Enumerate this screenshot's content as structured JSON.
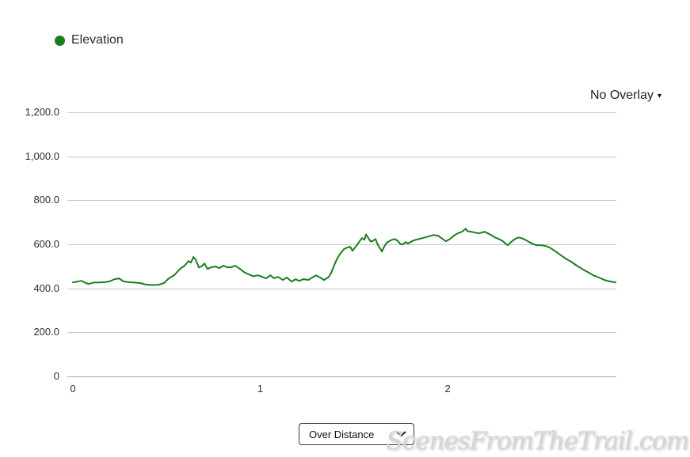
{
  "legend": {
    "label": "Elevation",
    "dot_color": "#1d7d1d"
  },
  "overlay_menu": {
    "label": "No Overlay",
    "caret": "▾"
  },
  "chart_data": {
    "type": "line",
    "title": "",
    "xlabel": "",
    "ylabel": "",
    "xlim": [
      0,
      2.9
    ],
    "ylim": [
      0,
      1200
    ],
    "grid": "horizontal-only",
    "legend_position": "top-left",
    "x_ticks": [
      0,
      1,
      2
    ],
    "y_ticks": [
      {
        "label": "1,200.0",
        "value": 1200
      },
      {
        "label": "1,000.0",
        "value": 1000
      },
      {
        "label": "800.0",
        "value": 800
      },
      {
        "label": "600.0",
        "value": 600
      },
      {
        "label": "400.0",
        "value": 400
      },
      {
        "label": "200.0",
        "value": 200
      },
      {
        "label": "0",
        "value": 0
      }
    ],
    "series": [
      {
        "name": "Elevation",
        "color": "#1d7d1d",
        "units_x": "miles",
        "units_y": "feet",
        "points": [
          [
            0.0,
            427
          ],
          [
            0.021,
            430
          ],
          [
            0.047,
            434
          ],
          [
            0.068,
            424
          ],
          [
            0.085,
            420
          ],
          [
            0.11,
            426
          ],
          [
            0.14,
            427
          ],
          [
            0.169,
            428
          ],
          [
            0.194,
            431
          ],
          [
            0.224,
            442
          ],
          [
            0.245,
            445
          ],
          [
            0.271,
            431
          ],
          [
            0.3,
            428
          ],
          [
            0.33,
            426
          ],
          [
            0.359,
            424
          ],
          [
            0.389,
            417
          ],
          [
            0.423,
            415
          ],
          [
            0.457,
            416
          ],
          [
            0.486,
            424
          ],
          [
            0.512,
            445
          ],
          [
            0.541,
            460
          ],
          [
            0.571,
            488
          ],
          [
            0.596,
            503
          ],
          [
            0.617,
            524
          ],
          [
            0.63,
            517
          ],
          [
            0.643,
            542
          ],
          [
            0.655,
            531
          ],
          [
            0.672,
            495
          ],
          [
            0.689,
            501
          ],
          [
            0.702,
            513
          ],
          [
            0.719,
            488
          ],
          [
            0.74,
            496
          ],
          [
            0.761,
            499
          ],
          [
            0.782,
            492
          ],
          [
            0.803,
            503
          ],
          [
            0.824,
            495
          ],
          [
            0.846,
            496
          ],
          [
            0.867,
            503
          ],
          [
            0.888,
            490
          ],
          [
            0.913,
            474
          ],
          [
            0.939,
            463
          ],
          [
            0.964,
            455
          ],
          [
            0.989,
            459
          ],
          [
            1.01,
            452
          ],
          [
            1.032,
            445
          ],
          [
            1.053,
            459
          ],
          [
            1.074,
            446
          ],
          [
            1.095,
            452
          ],
          [
            1.12,
            438
          ],
          [
            1.141,
            449
          ],
          [
            1.167,
            431
          ],
          [
            1.188,
            441
          ],
          [
            1.209,
            434
          ],
          [
            1.23,
            442
          ],
          [
            1.256,
            438
          ],
          [
            1.277,
            449
          ],
          [
            1.298,
            459
          ],
          [
            1.319,
            449
          ],
          [
            1.34,
            438
          ],
          [
            1.353,
            445
          ],
          [
            1.366,
            452
          ],
          [
            1.378,
            470
          ],
          [
            1.395,
            506
          ],
          [
            1.412,
            538
          ],
          [
            1.429,
            560
          ],
          [
            1.446,
            578
          ],
          [
            1.463,
            585
          ],
          [
            1.48,
            589
          ],
          [
            1.492,
            571
          ],
          [
            1.505,
            585
          ],
          [
            1.518,
            599
          ],
          [
            1.53,
            614
          ],
          [
            1.543,
            628
          ],
          [
            1.556,
            621
          ],
          [
            1.564,
            645
          ],
          [
            1.577,
            628
          ],
          [
            1.59,
            612
          ],
          [
            1.602,
            617
          ],
          [
            1.615,
            624
          ],
          [
            1.628,
            596
          ],
          [
            1.64,
            581
          ],
          [
            1.649,
            567
          ],
          [
            1.661,
            589
          ],
          [
            1.674,
            607
          ],
          [
            1.687,
            614
          ],
          [
            1.704,
            621
          ],
          [
            1.716,
            624
          ],
          [
            1.733,
            617
          ],
          [
            1.746,
            603
          ],
          [
            1.759,
            599
          ],
          [
            1.776,
            610
          ],
          [
            1.788,
            603
          ],
          [
            1.809,
            614
          ],
          [
            1.831,
            621
          ],
          [
            1.852,
            625
          ],
          [
            1.873,
            630
          ],
          [
            1.894,
            635
          ],
          [
            1.923,
            642
          ],
          [
            1.949,
            639
          ],
          [
            1.978,
            621
          ],
          [
            1.991,
            614
          ],
          [
            2.012,
            624
          ],
          [
            2.033,
            639
          ],
          [
            2.054,
            650
          ],
          [
            2.076,
            657
          ],
          [
            2.097,
            671
          ],
          [
            2.105,
            660
          ],
          [
            2.126,
            657
          ],
          [
            2.147,
            653
          ],
          [
            2.168,
            650
          ],
          [
            2.181,
            653
          ],
          [
            2.198,
            657
          ],
          [
            2.232,
            642
          ],
          [
            2.253,
            631
          ],
          [
            2.274,
            624
          ],
          [
            2.295,
            614
          ],
          [
            2.308,
            603
          ],
          [
            2.321,
            596
          ],
          [
            2.338,
            610
          ],
          [
            2.359,
            624
          ],
          [
            2.376,
            631
          ],
          [
            2.393,
            628
          ],
          [
            2.414,
            621
          ],
          [
            2.435,
            610
          ],
          [
            2.452,
            603
          ],
          [
            2.473,
            596
          ],
          [
            2.499,
            596
          ],
          [
            2.524,
            592
          ],
          [
            2.545,
            585
          ],
          [
            2.57,
            571
          ],
          [
            2.6,
            553
          ],
          [
            2.63,
            535
          ],
          [
            2.659,
            521
          ],
          [
            2.689,
            503
          ],
          [
            2.718,
            488
          ],
          [
            2.748,
            474
          ],
          [
            2.777,
            459
          ],
          [
            2.807,
            449
          ],
          [
            2.836,
            438
          ],
          [
            2.866,
            431
          ],
          [
            2.9,
            427
          ]
        ]
      }
    ]
  },
  "footer": {
    "mode_select": {
      "value": "Over Distance",
      "options": [
        "Over Distance"
      ]
    }
  },
  "watermark": "ScenesFromTheTrail.com"
}
